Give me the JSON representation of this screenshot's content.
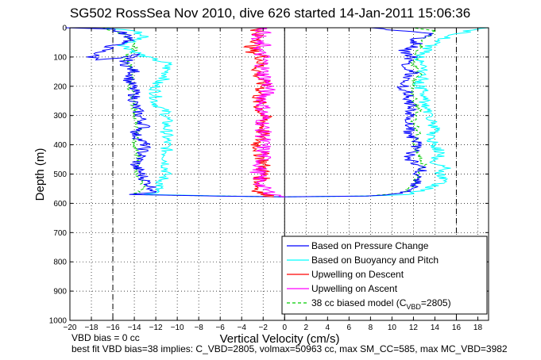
{
  "chart_data": {
    "type": "line",
    "title": "SG502 RossSea Nov 2010, dive 626 started 14-Jan-2011 15:06:36",
    "xlabel": "Vertical Velocity (cm/s)",
    "ylabel": "Depth (m)",
    "xlim": [
      -20,
      19
    ],
    "ylim": [
      1000,
      0
    ],
    "y_reversed": true,
    "grid": true,
    "x_ticks": [
      -20,
      -18,
      -16,
      -14,
      -12,
      -10,
      -8,
      -6,
      -4,
      -2,
      0,
      2,
      4,
      6,
      8,
      10,
      12,
      14,
      16,
      18
    ],
    "y_ticks": [
      0,
      100,
      200,
      300,
      400,
      500,
      600,
      700,
      800,
      900,
      1000
    ],
    "vertical_lines": [
      {
        "x": -16,
        "style": "dashed"
      },
      {
        "x": 0,
        "style": "solid"
      },
      {
        "x": 16,
        "style": "dashed"
      }
    ],
    "legend_position": "bottom-right",
    "legend": [
      {
        "label": "Based on Pressure Change",
        "color": "#0000ff",
        "style": "solid"
      },
      {
        "label": "Based on Buoyancy and Pitch",
        "color": "#00ffff",
        "style": "solid"
      },
      {
        "label": "Upwelling on Descent",
        "color": "#ff0000",
        "style": "solid"
      },
      {
        "label": "Upwelling on Ascent",
        "color": "#ff00ff",
        "style": "solid"
      },
      {
        "label": "38 cc biased model (C",
        "sub": "VBD",
        "label_tail": "=2805)",
        "color": "#00cc00",
        "style": "dashed"
      }
    ],
    "series": [
      {
        "name": "Based on Pressure Change",
        "color": "#0000ff",
        "descent": [
          [
            -20,
            0
          ],
          [
            -16,
            5
          ],
          [
            -15,
            20
          ],
          [
            -14,
            40
          ],
          [
            -16,
            60
          ],
          [
            -17,
            80
          ],
          [
            -18,
            100
          ],
          [
            -17,
            110
          ],
          [
            -15,
            100
          ],
          [
            -14,
            90
          ],
          [
            -15,
            120
          ],
          [
            -14,
            150
          ],
          [
            -14.5,
            180
          ],
          [
            -14,
            220
          ],
          [
            -14,
            260
          ],
          [
            -13.5,
            300
          ],
          [
            -13,
            340
          ],
          [
            -14,
            360
          ],
          [
            -13,
            400
          ],
          [
            -13.5,
            450
          ],
          [
            -14,
            470
          ],
          [
            -13.5,
            490
          ],
          [
            -13,
            520
          ],
          [
            -12,
            560
          ],
          [
            -14,
            570
          ],
          [
            -6,
            575
          ],
          [
            0,
            578
          ]
        ],
        "ascent": [
          [
            0,
            578
          ],
          [
            8,
            575
          ],
          [
            11,
            565
          ],
          [
            12,
            540
          ],
          [
            12.5,
            500
          ],
          [
            13,
            480
          ],
          [
            12,
            460
          ],
          [
            11.5,
            440
          ],
          [
            12,
            420
          ],
          [
            12.5,
            400
          ],
          [
            12,
            380
          ],
          [
            11.5,
            360
          ],
          [
            12,
            340
          ],
          [
            11,
            320
          ],
          [
            11.5,
            300
          ],
          [
            12,
            270
          ],
          [
            11.5,
            250
          ],
          [
            11.5,
            220
          ],
          [
            11,
            200
          ],
          [
            11.5,
            170
          ],
          [
            12,
            150
          ],
          [
            11,
            120
          ],
          [
            12,
            100
          ],
          [
            11,
            80
          ],
          [
            12.5,
            60
          ],
          [
            12,
            40
          ],
          [
            14,
            20
          ],
          [
            11,
            10
          ],
          [
            8,
            0
          ]
        ]
      },
      {
        "name": "Based on Buoyancy and Pitch",
        "color": "#00ffff",
        "descent": [
          [
            -17,
            0
          ],
          [
            -14,
            10
          ],
          [
            -13,
            30
          ],
          [
            -15,
            60
          ],
          [
            -14,
            80
          ],
          [
            -13,
            100
          ],
          [
            -12,
            110
          ],
          [
            -11,
            120
          ],
          [
            -11,
            150
          ],
          [
            -11,
            170
          ],
          [
            -12,
            190
          ],
          [
            -12,
            220
          ],
          [
            -12,
            260
          ],
          [
            -11,
            290
          ],
          [
            -11,
            320
          ],
          [
            -11,
            350
          ],
          [
            -11,
            370
          ],
          [
            -11,
            400
          ],
          [
            -11,
            430
          ],
          [
            -11,
            460
          ],
          [
            -11,
            490
          ],
          [
            -11.5,
            530
          ],
          [
            -12,
            560
          ],
          [
            -13,
            570
          ],
          [
            -6,
            575
          ],
          [
            0,
            578
          ]
        ],
        "ascent": [
          [
            0,
            578
          ],
          [
            8,
            575
          ],
          [
            11,
            570
          ],
          [
            12.5,
            560
          ],
          [
            14,
            540
          ],
          [
            15,
            520
          ],
          [
            14.5,
            500
          ],
          [
            15,
            480
          ],
          [
            14,
            460
          ],
          [
            14.5,
            430
          ],
          [
            14,
            400
          ],
          [
            13.5,
            380
          ],
          [
            14,
            340
          ],
          [
            13.5,
            300
          ],
          [
            13,
            260
          ],
          [
            13,
            220
          ],
          [
            12.5,
            200
          ],
          [
            13,
            160
          ],
          [
            13,
            120
          ],
          [
            12.5,
            100
          ],
          [
            13,
            80
          ],
          [
            14,
            50
          ],
          [
            16,
            20
          ],
          [
            18,
            5
          ],
          [
            19,
            0
          ]
        ]
      },
      {
        "name": "Upwelling on Descent",
        "color": "#ff0000",
        "profile": [
          [
            -2,
            0
          ],
          [
            -3,
            20
          ],
          [
            -2,
            40
          ],
          [
            -3,
            60
          ],
          [
            -3,
            80
          ],
          [
            -2,
            100
          ],
          [
            -2.5,
            150
          ],
          [
            -2,
            200
          ],
          [
            -2.5,
            250
          ],
          [
            -2,
            300
          ],
          [
            -2,
            350
          ],
          [
            -2.5,
            400
          ],
          [
            -2,
            450
          ],
          [
            -2,
            500
          ],
          [
            -2.5,
            550
          ],
          [
            -2,
            570
          ],
          [
            -1,
            578
          ]
        ]
      },
      {
        "name": "Upwelling on Ascent",
        "color": "#ff00ff",
        "profile": [
          [
            -2,
            0
          ],
          [
            -2,
            20
          ],
          [
            -3,
            40
          ],
          [
            -2,
            60
          ],
          [
            -2.5,
            80
          ],
          [
            -2,
            100
          ],
          [
            -2,
            150
          ],
          [
            -1.5,
            200
          ],
          [
            -2,
            250
          ],
          [
            -2,
            300
          ],
          [
            -2,
            350
          ],
          [
            -2,
            400
          ],
          [
            -2,
            450
          ],
          [
            -2.5,
            500
          ],
          [
            -2,
            550
          ],
          [
            -1,
            570
          ],
          [
            0,
            578
          ]
        ]
      },
      {
        "name": "38 cc biased model (C_VBD=2805)",
        "color": "#00cc00",
        "descent": [
          [
            -17,
            0
          ],
          [
            -15,
            20
          ],
          [
            -14,
            50
          ],
          [
            -14,
            80
          ],
          [
            -15,
            100
          ],
          [
            -14,
            150
          ],
          [
            -14.5,
            200
          ],
          [
            -14,
            250
          ],
          [
            -14,
            300
          ],
          [
            -13.5,
            350
          ],
          [
            -14,
            400
          ],
          [
            -13.5,
            450
          ],
          [
            -14,
            500
          ],
          [
            -13,
            540
          ],
          [
            -14,
            570
          ],
          [
            -6,
            575
          ],
          [
            0,
            578
          ]
        ],
        "ascent": [
          [
            0,
            578
          ],
          [
            8,
            575
          ],
          [
            11,
            565
          ],
          [
            12,
            540
          ],
          [
            12.5,
            500
          ],
          [
            13,
            470
          ],
          [
            12.5,
            430
          ],
          [
            12,
            400
          ],
          [
            12.5,
            360
          ],
          [
            12,
            320
          ],
          [
            12.5,
            280
          ],
          [
            12,
            240
          ],
          [
            12,
            200
          ],
          [
            12.5,
            160
          ],
          [
            12,
            120
          ],
          [
            12.5,
            80
          ],
          [
            13,
            40
          ],
          [
            14,
            10
          ],
          [
            12,
            0
          ]
        ]
      }
    ]
  },
  "footer": {
    "line1": "VBD bias = 0 cc",
    "line2": "best fit VBD bias=38 implies: C_VBD=2805, volmax=50963 cc, max SM_CC=585, max MC_VBD=3982"
  }
}
